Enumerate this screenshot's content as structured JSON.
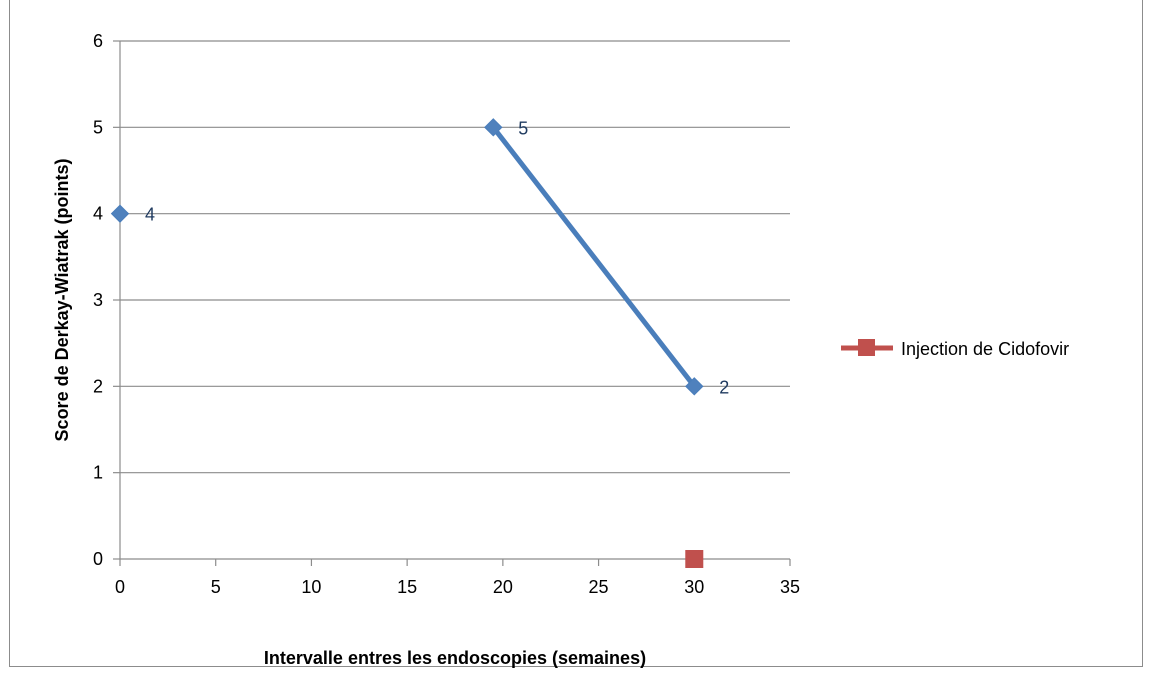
{
  "colors": {
    "series_line": "#4a7ebb",
    "series_marker": "#4f81bd",
    "injection_marker": "#c0504d",
    "grid": "#8c8c8c",
    "data_label": "#1f3a5f"
  },
  "chart_data": {
    "type": "scatter",
    "title": "",
    "xlabel": "Intervalle entres les endoscopies (semaines)",
    "ylabel": "Score de Derkay-Wiatrak (points)",
    "xlim": [
      0,
      35
    ],
    "ylim": [
      0,
      6
    ],
    "x_ticks": [
      0,
      5,
      10,
      15,
      20,
      25,
      30,
      35
    ],
    "y_ticks": [
      0,
      1,
      2,
      3,
      4,
      5,
      6
    ],
    "grid": "horizontal",
    "legend_position": "right",
    "series": [
      {
        "marker": "diamond",
        "points": [
          {
            "x": 0,
            "y": 4,
            "label": "4",
            "connect_to_next": false
          },
          {
            "x": 19.5,
            "y": 5,
            "label": "5",
            "connect_to_next": true
          },
          {
            "x": 30,
            "y": 2,
            "label": "2",
            "connect_to_next": false
          }
        ]
      },
      {
        "name": "Injection de Cidofovir",
        "marker": "square",
        "points": [
          {
            "x": 30,
            "y": 0
          }
        ]
      }
    ]
  }
}
